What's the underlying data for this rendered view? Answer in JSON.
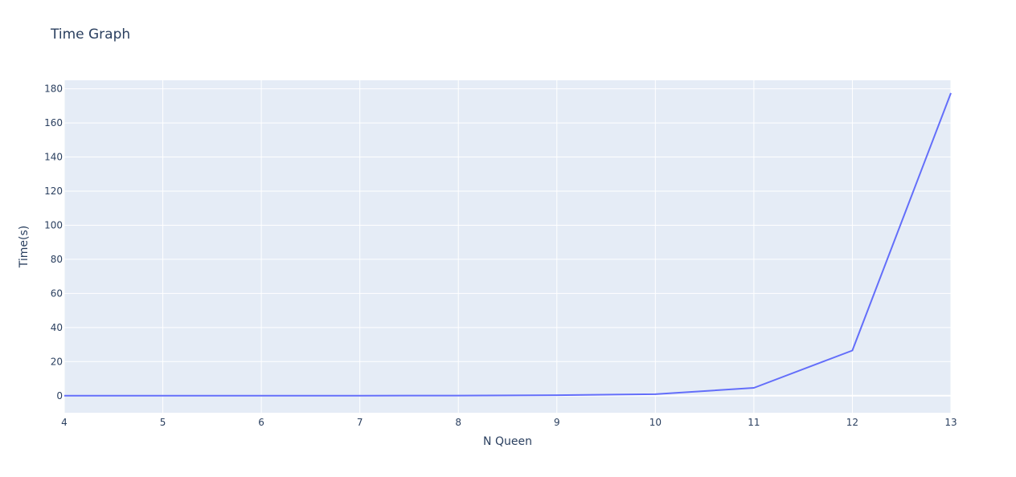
{
  "chart_data": {
    "type": "line",
    "title": "Time Graph",
    "xlabel": "N Queen",
    "ylabel": "Time(s)",
    "xlim": [
      4,
      13
    ],
    "ylim": [
      -10,
      185
    ],
    "xticks": [
      4,
      5,
      6,
      7,
      8,
      9,
      10,
      11,
      12,
      13
    ],
    "yticks": [
      0,
      20,
      40,
      60,
      80,
      100,
      120,
      140,
      160,
      180
    ],
    "grid": true,
    "colors": {
      "plot_bg": "#e5ecf6",
      "grid": "#ffffff",
      "line": "#636efa",
      "text": "#2a3f5f"
    },
    "series": [
      {
        "x": [
          4,
          5,
          6,
          7,
          8,
          9,
          10,
          11,
          12,
          13
        ],
        "y": [
          0.001,
          0.003,
          0.01,
          0.03,
          0.1,
          0.3,
          0.9,
          4.6,
          26.5,
          177.5
        ]
      }
    ]
  }
}
